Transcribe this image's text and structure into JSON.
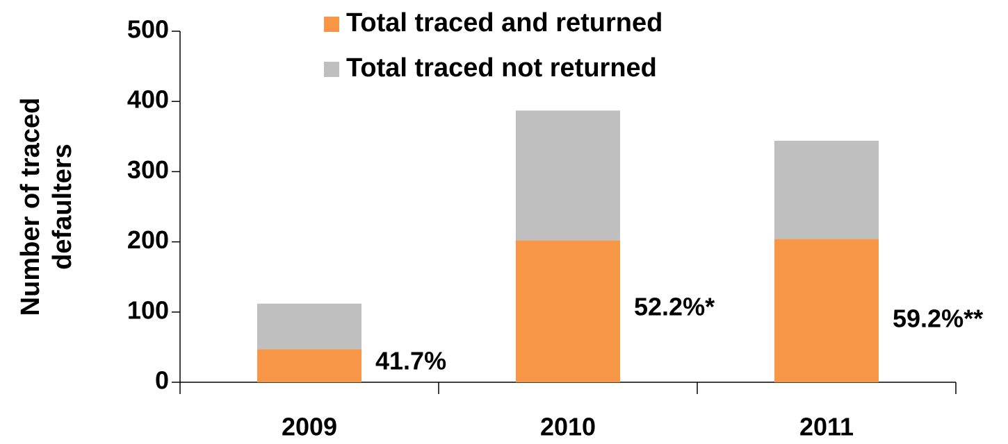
{
  "chart_data": {
    "type": "stacked_bar",
    "ylabel": [
      "Number of traced",
      "defaulters"
    ],
    "categories": [
      "2009",
      "2010",
      "2011"
    ],
    "series": [
      {
        "name": "Total traced and returned",
        "color": "#f79646",
        "values": [
          47,
          202,
          204
        ]
      },
      {
        "name": "Total traced not returned",
        "color": "#bfbfbf",
        "values": [
          65,
          185,
          140
        ]
      }
    ],
    "annotations": [
      "41.7%",
      "52.2%*",
      "59.2%**"
    ],
    "ylim": [
      0,
      500
    ],
    "yticks": [
      0,
      100,
      200,
      300,
      400,
      500
    ]
  }
}
